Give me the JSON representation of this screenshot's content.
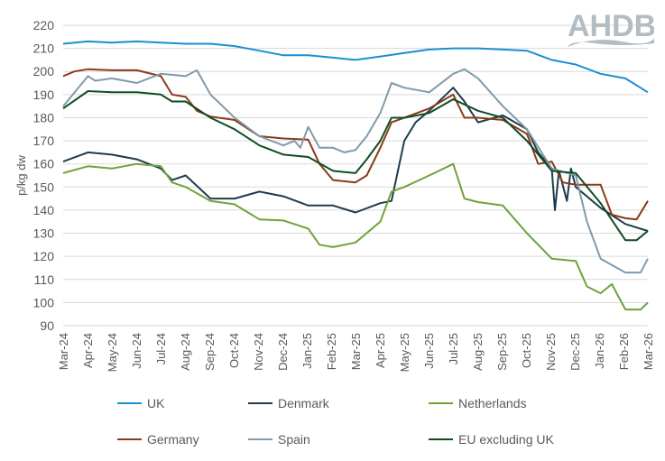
{
  "logo": "AHDB",
  "chart_data": {
    "type": "line",
    "ylabel": "p/kg dw",
    "ylim": [
      90,
      220
    ],
    "yticks": [
      90,
      100,
      110,
      120,
      130,
      140,
      150,
      160,
      170,
      180,
      190,
      200,
      210,
      220
    ],
    "xlim": [
      "2024-03-01",
      "2026-03-01"
    ],
    "xticks": [
      "Mar-24",
      "Apr-24",
      "May-24",
      "Jun-24",
      "Jul-24",
      "Aug-24",
      "Sep-24",
      "Oct-24",
      "Nov-24",
      "Dec-24",
      "Jan-25",
      "Feb-25",
      "Mar-25",
      "Apr-25",
      "May-25",
      "Jun-25",
      "Jul-25",
      "Aug-25",
      "Sep-25",
      "Oct-25",
      "Nov-25",
      "Dec-25",
      "Jan-26",
      "Feb-26",
      "Mar-26"
    ],
    "grid": true,
    "legend_position": "bottom",
    "series": [
      {
        "name": "UK",
        "color": "#1a8fd1",
        "points": [
          [
            "2024-03-01",
            212
          ],
          [
            "2024-04-01",
            213
          ],
          [
            "2024-05-01",
            212.5
          ],
          [
            "2024-06-01",
            213
          ],
          [
            "2024-07-01",
            212.5
          ],
          [
            "2024-08-01",
            212
          ],
          [
            "2024-09-01",
            212
          ],
          [
            "2024-10-01",
            211
          ],
          [
            "2024-11-01",
            209
          ],
          [
            "2024-12-01",
            207
          ],
          [
            "2025-01-01",
            207
          ],
          [
            "2025-02-01",
            206
          ],
          [
            "2025-03-01",
            205
          ],
          [
            "2025-04-01",
            206.5
          ],
          [
            "2025-05-01",
            208
          ],
          [
            "2025-06-01",
            209.5
          ],
          [
            "2025-07-01",
            210
          ],
          [
            "2025-08-01",
            210
          ],
          [
            "2025-09-01",
            209.5
          ],
          [
            "2025-10-01",
            209
          ],
          [
            "2025-11-01",
            205
          ],
          [
            "2025-12-01",
            203
          ],
          [
            "2026-01-01",
            199
          ],
          [
            "2026-02-01",
            197
          ],
          [
            "2026-03-01",
            191
          ]
        ]
      },
      {
        "name": "Denmark",
        "color": "#1f3b4d",
        "points": [
          [
            "2024-03-01",
            161
          ],
          [
            "2024-04-01",
            165
          ],
          [
            "2024-05-01",
            164
          ],
          [
            "2024-06-01",
            162
          ],
          [
            "2024-07-01",
            158
          ],
          [
            "2024-07-15",
            153
          ],
          [
            "2024-08-01",
            155
          ],
          [
            "2024-09-01",
            145
          ],
          [
            "2024-10-01",
            145
          ],
          [
            "2024-11-01",
            148
          ],
          [
            "2024-12-01",
            146
          ],
          [
            "2025-01-01",
            142
          ],
          [
            "2025-02-01",
            142
          ],
          [
            "2025-03-01",
            139
          ],
          [
            "2025-04-01",
            143
          ],
          [
            "2025-04-15",
            144
          ],
          [
            "2025-05-01",
            170
          ],
          [
            "2025-05-15",
            178
          ],
          [
            "2025-06-01",
            183
          ],
          [
            "2025-07-01",
            193
          ],
          [
            "2025-07-15",
            187
          ],
          [
            "2025-08-01",
            178
          ],
          [
            "2025-09-01",
            181
          ],
          [
            "2025-10-01",
            175
          ],
          [
            "2025-10-15",
            165
          ],
          [
            "2025-11-01",
            158
          ],
          [
            "2025-11-05",
            140
          ],
          [
            "2025-11-10",
            157
          ],
          [
            "2025-11-20",
            144
          ],
          [
            "2025-11-25",
            158
          ],
          [
            "2025-12-01",
            150
          ],
          [
            "2026-01-01",
            141
          ],
          [
            "2026-02-01",
            134
          ],
          [
            "2026-03-01",
            131
          ]
        ]
      },
      {
        "name": "Netherlands",
        "color": "#6fa33a",
        "points": [
          [
            "2024-03-01",
            156
          ],
          [
            "2024-04-01",
            159
          ],
          [
            "2024-05-01",
            158
          ],
          [
            "2024-06-01",
            160
          ],
          [
            "2024-07-01",
            159
          ],
          [
            "2024-07-15",
            152
          ],
          [
            "2024-08-01",
            150
          ],
          [
            "2024-09-01",
            144
          ],
          [
            "2024-10-01",
            142.5
          ],
          [
            "2024-11-01",
            136
          ],
          [
            "2024-12-01",
            135.5
          ],
          [
            "2025-01-01",
            132
          ],
          [
            "2025-01-15",
            125
          ],
          [
            "2025-02-01",
            124
          ],
          [
            "2025-03-01",
            126
          ],
          [
            "2025-04-01",
            135
          ],
          [
            "2025-04-15",
            148
          ],
          [
            "2025-05-01",
            150
          ],
          [
            "2025-06-01",
            155
          ],
          [
            "2025-07-01",
            160
          ],
          [
            "2025-07-15",
            145
          ],
          [
            "2025-08-01",
            143.5
          ],
          [
            "2025-09-01",
            142
          ],
          [
            "2025-10-01",
            130
          ],
          [
            "2025-11-01",
            119
          ],
          [
            "2025-12-01",
            118
          ],
          [
            "2025-12-15",
            107
          ],
          [
            "2026-01-01",
            104
          ],
          [
            "2026-01-15",
            108
          ],
          [
            "2026-02-01",
            97
          ],
          [
            "2026-02-20",
            97
          ],
          [
            "2026-03-01",
            100
          ]
        ]
      },
      {
        "name": "Germany",
        "color": "#8b3a1a",
        "points": [
          [
            "2024-03-01",
            198
          ],
          [
            "2024-03-15",
            200
          ],
          [
            "2024-04-01",
            201
          ],
          [
            "2024-05-01",
            200.5
          ],
          [
            "2024-06-01",
            200.5
          ],
          [
            "2024-07-01",
            198
          ],
          [
            "2024-07-15",
            190
          ],
          [
            "2024-08-01",
            189
          ],
          [
            "2024-08-15",
            183
          ],
          [
            "2024-09-01",
            180.5
          ],
          [
            "2024-10-01",
            179
          ],
          [
            "2024-11-01",
            172
          ],
          [
            "2024-12-01",
            171
          ],
          [
            "2025-01-01",
            170.5
          ],
          [
            "2025-01-15",
            160
          ],
          [
            "2025-02-01",
            153
          ],
          [
            "2025-03-01",
            152
          ],
          [
            "2025-03-15",
            155
          ],
          [
            "2025-04-01",
            167
          ],
          [
            "2025-04-15",
            178
          ],
          [
            "2025-05-01",
            180
          ],
          [
            "2025-06-01",
            184
          ],
          [
            "2025-07-01",
            190
          ],
          [
            "2025-07-15",
            180
          ],
          [
            "2025-08-01",
            180
          ],
          [
            "2025-09-01",
            179
          ],
          [
            "2025-10-01",
            173
          ],
          [
            "2025-10-15",
            160
          ],
          [
            "2025-11-01",
            161
          ],
          [
            "2025-11-15",
            152
          ],
          [
            "2025-12-01",
            151
          ],
          [
            "2026-01-01",
            151
          ],
          [
            "2026-01-15",
            138
          ],
          [
            "2026-02-01",
            136.5
          ],
          [
            "2026-02-15",
            136
          ],
          [
            "2026-03-01",
            144
          ]
        ]
      },
      {
        "name": "Spain",
        "color": "#7f9aaa",
        "points": [
          [
            "2024-03-01",
            185
          ],
          [
            "2024-04-01",
            198
          ],
          [
            "2024-04-10",
            196
          ],
          [
            "2024-05-01",
            197
          ],
          [
            "2024-06-01",
            195
          ],
          [
            "2024-07-01",
            199
          ],
          [
            "2024-08-01",
            198
          ],
          [
            "2024-08-15",
            200.5
          ],
          [
            "2024-09-01",
            190
          ],
          [
            "2024-10-01",
            180
          ],
          [
            "2024-11-01",
            172
          ],
          [
            "2024-12-01",
            168
          ],
          [
            "2024-12-15",
            170
          ],
          [
            "2024-12-22",
            167
          ],
          [
            "2025-01-01",
            176
          ],
          [
            "2025-01-15",
            167
          ],
          [
            "2025-02-01",
            167
          ],
          [
            "2025-02-15",
            165
          ],
          [
            "2025-03-01",
            166
          ],
          [
            "2025-03-15",
            172
          ],
          [
            "2025-04-01",
            182
          ],
          [
            "2025-04-15",
            195
          ],
          [
            "2025-05-01",
            193
          ],
          [
            "2025-06-01",
            191
          ],
          [
            "2025-07-01",
            199
          ],
          [
            "2025-07-15",
            201
          ],
          [
            "2025-08-01",
            197
          ],
          [
            "2025-09-01",
            185
          ],
          [
            "2025-10-01",
            175
          ],
          [
            "2025-11-01",
            158
          ],
          [
            "2025-12-01",
            155
          ],
          [
            "2025-12-15",
            135
          ],
          [
            "2026-01-01",
            119
          ],
          [
            "2026-02-01",
            113
          ],
          [
            "2026-02-20",
            113
          ],
          [
            "2026-03-01",
            119
          ]
        ]
      },
      {
        "name": "EU excluding UK",
        "color": "#0e4d24",
        "points": [
          [
            "2024-03-01",
            184
          ],
          [
            "2024-04-01",
            191.5
          ],
          [
            "2024-05-01",
            191
          ],
          [
            "2024-06-01",
            191
          ],
          [
            "2024-07-01",
            190
          ],
          [
            "2024-07-15",
            187
          ],
          [
            "2024-08-01",
            187
          ],
          [
            "2024-09-01",
            180
          ],
          [
            "2024-10-01",
            175
          ],
          [
            "2024-11-01",
            168
          ],
          [
            "2024-12-01",
            164
          ],
          [
            "2025-01-01",
            163
          ],
          [
            "2025-02-01",
            157
          ],
          [
            "2025-03-01",
            156
          ],
          [
            "2025-03-15",
            162
          ],
          [
            "2025-04-01",
            170
          ],
          [
            "2025-04-15",
            180
          ],
          [
            "2025-05-01",
            180
          ],
          [
            "2025-06-01",
            182
          ],
          [
            "2025-07-01",
            188
          ],
          [
            "2025-08-01",
            183
          ],
          [
            "2025-09-01",
            180
          ],
          [
            "2025-10-01",
            170
          ],
          [
            "2025-11-01",
            157
          ],
          [
            "2025-12-01",
            156
          ],
          [
            "2026-01-01",
            143
          ],
          [
            "2026-02-01",
            127
          ],
          [
            "2026-02-15",
            127
          ],
          [
            "2026-03-01",
            131
          ]
        ]
      }
    ]
  }
}
